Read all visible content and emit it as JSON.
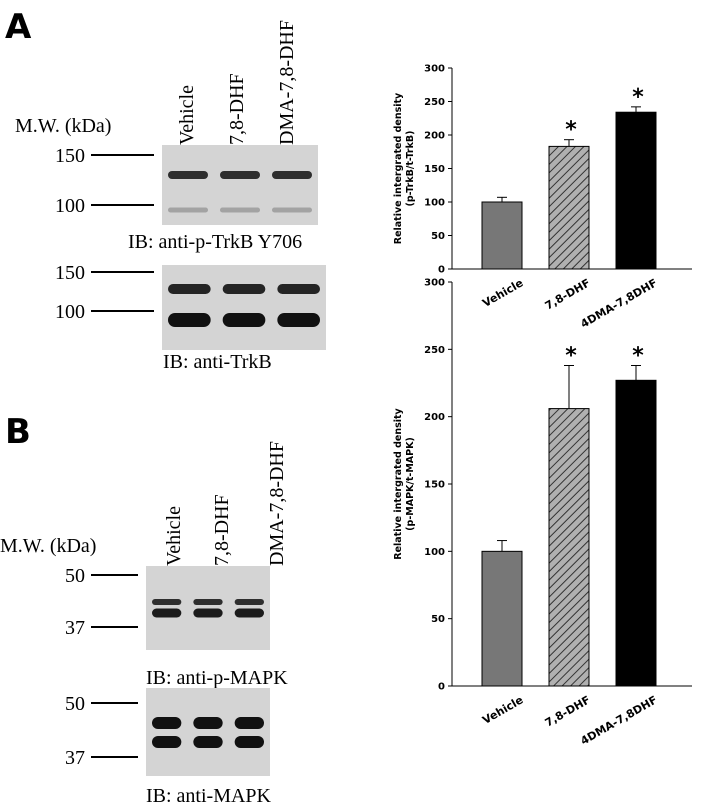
{
  "chart_data": [
    {
      "type": "bar",
      "categories": [
        "Vehicle",
        "7,8-DHF",
        "4DMA-7,8DHF"
      ],
      "values": [
        100,
        183,
        234
      ],
      "errors": [
        7,
        10,
        8
      ],
      "colors": [
        "#777777",
        "#a8a8a8",
        "#000000"
      ],
      "hatched": [
        false,
        true,
        false
      ],
      "annotations": [
        null,
        "*",
        "*"
      ],
      "ylabel": [
        "Relative intergrated density",
        "(p-TrkB/t-TrkB)"
      ],
      "ylim": [
        0,
        300
      ],
      "yticks": [
        0,
        50,
        100,
        150,
        200,
        250,
        300
      ]
    },
    {
      "type": "bar",
      "categories": [
        "Vehicle",
        "7,8-DHF",
        "4DMA-7,8DHF"
      ],
      "values": [
        100,
        206,
        227
      ],
      "errors": [
        8,
        32,
        11
      ],
      "colors": [
        "#777777",
        "#a8a8a8",
        "#000000"
      ],
      "hatched": [
        false,
        true,
        false
      ],
      "annotations": [
        null,
        "*",
        "*"
      ],
      "ylabel": [
        "Relative intergrated density",
        "(p-MAPK/t-MAPK)"
      ],
      "ylim": [
        0,
        300
      ],
      "yticks": [
        0,
        50,
        100,
        150,
        200,
        250,
        300
      ]
    }
  ],
  "panels": [
    {
      "label": "A",
      "lanes": [
        "Vehicle",
        "7,8-DHF",
        "DMA-7,8-DHF"
      ],
      "mw": "M.W. (kDa)",
      "blots": [
        {
          "markers": [
            "150",
            "100"
          ],
          "caption": "IB: anti-p-TrkB Y706"
        },
        {
          "markers": [
            "150",
            "100"
          ],
          "caption": "IB: anti-TrkB"
        }
      ]
    },
    {
      "label": "B",
      "lanes": [
        "Vehicle",
        "7,8-DHF",
        "DMA-7,8-DHF"
      ],
      "mw": "M.W. (kDa)",
      "blots": [
        {
          "markers": [
            "50",
            "37"
          ],
          "caption": "IB: anti-p-MAPK"
        },
        {
          "markers": [
            "50",
            "37"
          ],
          "caption": "IB: anti-MAPK"
        }
      ]
    }
  ]
}
